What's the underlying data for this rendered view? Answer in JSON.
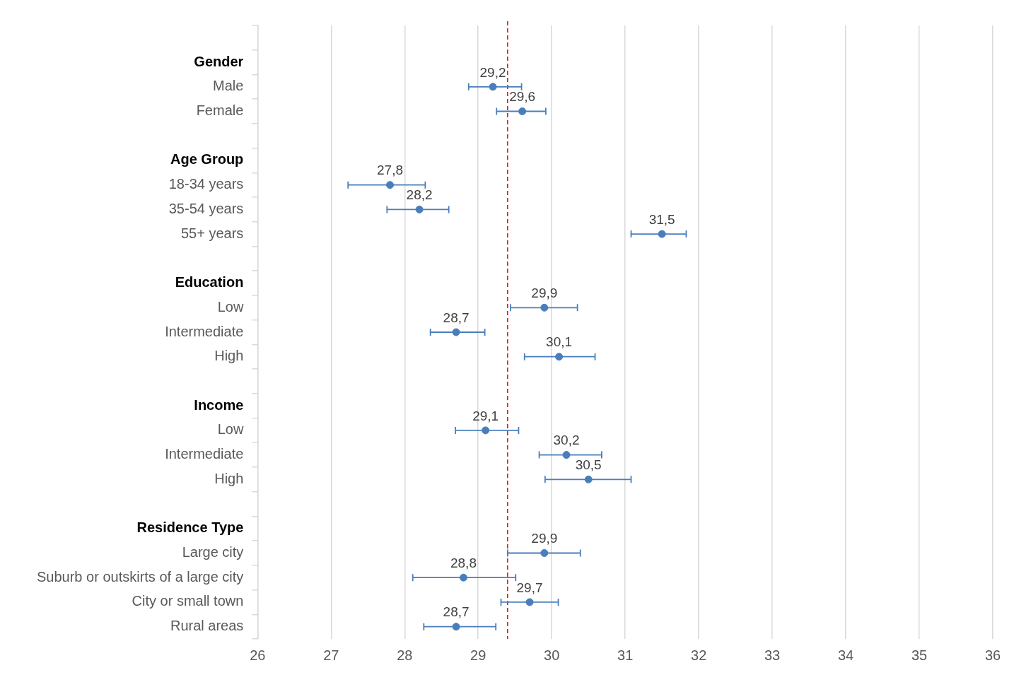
{
  "chart_data": {
    "type": "scatter",
    "orientation": "horizontal",
    "categories": [
      null,
      "Gender",
      "Male",
      "Female",
      null,
      "Age Group",
      "18-34 years",
      "35-54 years",
      "55+ years",
      null,
      "Education",
      "Low",
      "Intermediate",
      "High",
      null,
      "Income",
      "Low",
      "Intermediate",
      "High",
      null,
      "Residence Type",
      "Large city",
      "Suburb or outskirts of a large city",
      "City or small town",
      "Rural areas"
    ],
    "values": [
      null,
      null,
      29.2,
      29.6,
      null,
      null,
      27.8,
      28.2,
      31.5,
      null,
      null,
      29.9,
      28.7,
      30.1,
      null,
      null,
      29.1,
      30.2,
      30.5,
      null,
      null,
      29.9,
      28.8,
      29.7,
      28.7
    ],
    "errors": [
      null,
      null,
      [
        28.87,
        29.59
      ],
      [
        29.25,
        29.92
      ],
      null,
      null,
      [
        27.23,
        28.28
      ],
      [
        27.76,
        28.6
      ],
      [
        31.08,
        31.83
      ],
      null,
      null,
      [
        29.44,
        30.35
      ],
      [
        28.35,
        29.09
      ],
      [
        29.63,
        30.59
      ],
      null,
      null,
      [
        28.69,
        29.55
      ],
      [
        29.83,
        30.68
      ],
      [
        29.91,
        31.08
      ],
      null,
      null,
      [
        29.4,
        30.39
      ],
      [
        28.11,
        29.51
      ],
      [
        29.31,
        30.09
      ],
      [
        28.26,
        29.24
      ]
    ],
    "value_labels": [
      null,
      null,
      "29,2",
      "29,6",
      null,
      null,
      "27,8",
      "28,2",
      "31,5",
      null,
      null,
      "29,9",
      "28,7",
      "30,1",
      null,
      null,
      "29,1",
      "30,2",
      "30,5",
      null,
      null,
      "29,9",
      "28,8",
      "29,7",
      "28,7"
    ],
    "color": "#4a7ebb",
    "xlim": [
      26,
      36
    ],
    "xticks": [
      26,
      27,
      28,
      29,
      30,
      31,
      32,
      33,
      34,
      35,
      36
    ],
    "ref_lines": [
      {
        "axis": "x",
        "value": 29.4,
        "color": "#ff0000",
        "line_style": "dashed"
      }
    ],
    "grid": "x",
    "legend": false,
    "marker": "circle"
  }
}
